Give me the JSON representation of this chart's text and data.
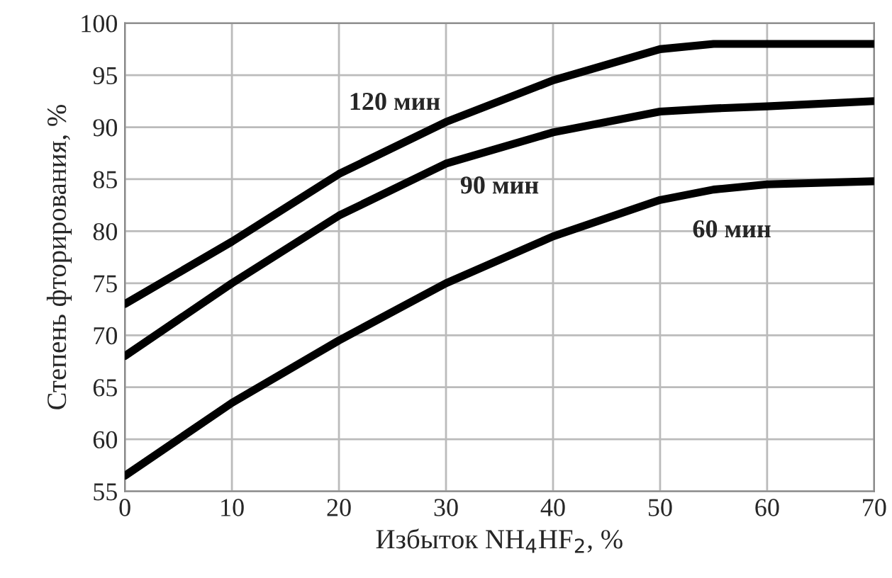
{
  "chart_data": {
    "type": "line",
    "xlabel": "Избыток NH$_{4}$HF$_{2}$, %",
    "ylabel": "Степень фторирования, %",
    "x": [
      0,
      10,
      20,
      30,
      40,
      50,
      55,
      60,
      70
    ],
    "series": [
      {
        "name": "120 мин",
        "color": "#000000",
        "values": [
          73,
          79,
          85.5,
          90.5,
          94.5,
          97.5,
          98,
          98,
          98
        ]
      },
      {
        "name": "90 мин",
        "color": "#000000",
        "values": [
          68,
          75,
          81.5,
          86.5,
          89.5,
          91.5,
          91.8,
          92,
          92.5
        ]
      },
      {
        "name": "60 мин",
        "color": "#000000",
        "values": [
          56.5,
          63.5,
          69.5,
          75,
          79.5,
          83,
          84,
          84.5,
          84.8
        ]
      }
    ],
    "xlim": [
      0,
      70
    ],
    "ylim": [
      55,
      100
    ],
    "xticks": [
      0,
      10,
      20,
      30,
      40,
      50,
      60,
      70
    ],
    "yticks": [
      55,
      60,
      65,
      70,
      75,
      80,
      85,
      90,
      95,
      100
    ],
    "grid": true,
    "marker": "none",
    "line_style": "solid"
  }
}
